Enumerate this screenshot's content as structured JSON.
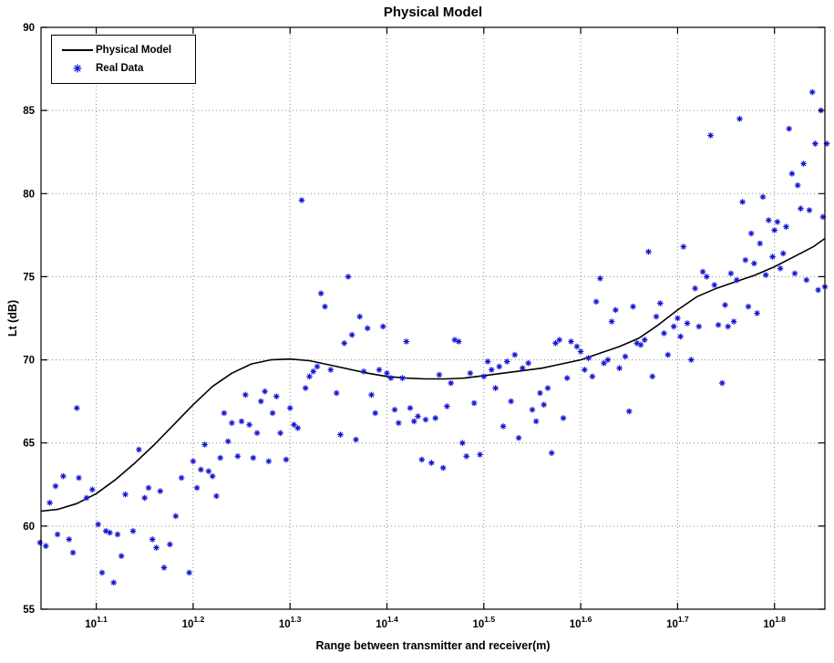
{
  "figure": {
    "background": "#ffffff"
  },
  "legend": {
    "items": [
      {
        "label": "Physical Model",
        "marker": "line"
      },
      {
        "label": "Real Data",
        "marker": "asterisk"
      }
    ]
  },
  "chart_data": {
    "type": "scatter",
    "title": "Physical Model",
    "xlabel": "Range between transmitter and receiver(m)",
    "ylabel": "Lt (dB)",
    "x_scale": "log10",
    "x_tick_base": "10",
    "x_tick_exponents": [
      "1.1",
      "1.2",
      "1.3",
      "1.4",
      "1.5",
      "1.6",
      "1.7",
      "1.8"
    ],
    "xlim_log": [
      1.043,
      1.852
    ],
    "ylim": [
      55,
      90
    ],
    "y_ticks": [
      55,
      60,
      65,
      70,
      75,
      80,
      85,
      90
    ],
    "grid": "dotted",
    "legend_position": "top-left",
    "colors": {
      "model": "#000000",
      "data": "#1414d6",
      "grid": "#8a8a8a"
    },
    "series": [
      {
        "name": "Physical Model",
        "type": "line",
        "points_logx_y": [
          [
            1.043,
            60.9
          ],
          [
            1.06,
            61.0
          ],
          [
            1.08,
            61.35
          ],
          [
            1.1,
            61.95
          ],
          [
            1.12,
            62.8
          ],
          [
            1.14,
            63.8
          ],
          [
            1.16,
            64.9
          ],
          [
            1.18,
            66.1
          ],
          [
            1.2,
            67.3
          ],
          [
            1.22,
            68.4
          ],
          [
            1.24,
            69.2
          ],
          [
            1.26,
            69.75
          ],
          [
            1.28,
            70.0
          ],
          [
            1.3,
            70.05
          ],
          [
            1.32,
            69.95
          ],
          [
            1.34,
            69.7
          ],
          [
            1.36,
            69.45
          ],
          [
            1.38,
            69.2
          ],
          [
            1.4,
            69.0
          ],
          [
            1.42,
            68.9
          ],
          [
            1.44,
            68.85
          ],
          [
            1.46,
            68.85
          ],
          [
            1.48,
            68.9
          ],
          [
            1.5,
            69.05
          ],
          [
            1.52,
            69.2
          ],
          [
            1.54,
            69.35
          ],
          [
            1.56,
            69.5
          ],
          [
            1.58,
            69.75
          ],
          [
            1.6,
            70.0
          ],
          [
            1.62,
            70.4
          ],
          [
            1.64,
            70.8
          ],
          [
            1.66,
            71.3
          ],
          [
            1.68,
            72.1
          ],
          [
            1.7,
            73.0
          ],
          [
            1.72,
            73.8
          ],
          [
            1.74,
            74.3
          ],
          [
            1.76,
            74.7
          ],
          [
            1.78,
            75.1
          ],
          [
            1.8,
            75.6
          ],
          [
            1.82,
            76.2
          ],
          [
            1.84,
            76.8
          ],
          [
            1.852,
            77.3
          ]
        ]
      },
      {
        "name": "Real Data",
        "type": "scatter",
        "points_logx_y": [
          [
            1.042,
            59.0
          ],
          [
            1.048,
            58.8
          ],
          [
            1.052,
            61.4
          ],
          [
            1.058,
            62.4
          ],
          [
            1.06,
            59.5
          ],
          [
            1.066,
            63.0
          ],
          [
            1.072,
            59.2
          ],
          [
            1.076,
            58.4
          ],
          [
            1.08,
            67.1
          ],
          [
            1.082,
            62.9
          ],
          [
            1.09,
            61.7
          ],
          [
            1.096,
            62.2
          ],
          [
            1.102,
            60.1
          ],
          [
            1.106,
            57.2
          ],
          [
            1.11,
            59.7
          ],
          [
            1.114,
            59.6
          ],
          [
            1.118,
            56.6
          ],
          [
            1.122,
            59.5
          ],
          [
            1.126,
            58.2
          ],
          [
            1.13,
            61.9
          ],
          [
            1.138,
            59.7
          ],
          [
            1.144,
            64.6
          ],
          [
            1.15,
            61.7
          ],
          [
            1.154,
            62.3
          ],
          [
            1.158,
            59.2
          ],
          [
            1.162,
            58.7
          ],
          [
            1.166,
            62.1
          ],
          [
            1.17,
            57.5
          ],
          [
            1.176,
            58.9
          ],
          [
            1.182,
            60.6
          ],
          [
            1.188,
            62.9
          ],
          [
            1.196,
            57.2
          ],
          [
            1.2,
            63.9
          ],
          [
            1.204,
            62.3
          ],
          [
            1.208,
            63.4
          ],
          [
            1.212,
            64.9
          ],
          [
            1.216,
            63.3
          ],
          [
            1.22,
            63.0
          ],
          [
            1.224,
            61.8
          ],
          [
            1.228,
            64.1
          ],
          [
            1.232,
            66.8
          ],
          [
            1.236,
            65.1
          ],
          [
            1.24,
            66.2
          ],
          [
            1.246,
            64.2
          ],
          [
            1.25,
            66.3
          ],
          [
            1.254,
            67.9
          ],
          [
            1.258,
            66.1
          ],
          [
            1.262,
            64.1
          ],
          [
            1.266,
            65.6
          ],
          [
            1.27,
            67.5
          ],
          [
            1.274,
            68.1
          ],
          [
            1.278,
            63.9
          ],
          [
            1.282,
            66.8
          ],
          [
            1.286,
            67.8
          ],
          [
            1.29,
            65.6
          ],
          [
            1.296,
            64.0
          ],
          [
            1.3,
            67.1
          ],
          [
            1.304,
            66.1
          ],
          [
            1.308,
            65.9
          ],
          [
            1.312,
            79.6
          ],
          [
            1.316,
            68.3
          ],
          [
            1.32,
            69.0
          ],
          [
            1.324,
            69.3
          ],
          [
            1.328,
            69.6
          ],
          [
            1.332,
            74.0
          ],
          [
            1.336,
            73.2
          ],
          [
            1.342,
            69.4
          ],
          [
            1.348,
            68.0
          ],
          [
            1.352,
            65.5
          ],
          [
            1.356,
            71.0
          ],
          [
            1.36,
            75.0
          ],
          [
            1.364,
            71.5
          ],
          [
            1.368,
            65.2
          ],
          [
            1.372,
            72.6
          ],
          [
            1.376,
            69.3
          ],
          [
            1.38,
            71.9
          ],
          [
            1.384,
            67.9
          ],
          [
            1.388,
            66.8
          ],
          [
            1.392,
            69.4
          ],
          [
            1.396,
            72.0
          ],
          [
            1.4,
            69.2
          ],
          [
            1.404,
            68.9
          ],
          [
            1.408,
            67.0
          ],
          [
            1.412,
            66.2
          ],
          [
            1.416,
            68.9
          ],
          [
            1.42,
            71.1
          ],
          [
            1.424,
            67.1
          ],
          [
            1.428,
            66.3
          ],
          [
            1.432,
            66.6
          ],
          [
            1.436,
            64.0
          ],
          [
            1.44,
            66.4
          ],
          [
            1.446,
            63.8
          ],
          [
            1.45,
            66.5
          ],
          [
            1.454,
            69.1
          ],
          [
            1.458,
            63.5
          ],
          [
            1.462,
            67.2
          ],
          [
            1.466,
            68.6
          ],
          [
            1.47,
            71.2
          ],
          [
            1.474,
            71.1
          ],
          [
            1.478,
            65.0
          ],
          [
            1.482,
            64.2
          ],
          [
            1.486,
            69.2
          ],
          [
            1.49,
            67.4
          ],
          [
            1.496,
            64.3
          ],
          [
            1.5,
            69.0
          ],
          [
            1.504,
            69.9
          ],
          [
            1.508,
            69.4
          ],
          [
            1.512,
            68.3
          ],
          [
            1.516,
            69.6
          ],
          [
            1.52,
            66.0
          ],
          [
            1.524,
            69.9
          ],
          [
            1.528,
            67.5
          ],
          [
            1.532,
            70.3
          ],
          [
            1.536,
            65.3
          ],
          [
            1.54,
            69.5
          ],
          [
            1.546,
            69.8
          ],
          [
            1.55,
            67.0
          ],
          [
            1.554,
            66.3
          ],
          [
            1.558,
            68.0
          ],
          [
            1.562,
            67.3
          ],
          [
            1.566,
            68.3
          ],
          [
            1.57,
            64.4
          ],
          [
            1.574,
            71.0
          ],
          [
            1.578,
            71.2
          ],
          [
            1.582,
            66.5
          ],
          [
            1.586,
            68.9
          ],
          [
            1.59,
            71.1
          ],
          [
            1.596,
            70.8
          ],
          [
            1.6,
            70.5
          ],
          [
            1.604,
            69.4
          ],
          [
            1.608,
            70.1
          ],
          [
            1.612,
            69.0
          ],
          [
            1.616,
            73.5
          ],
          [
            1.62,
            74.9
          ],
          [
            1.624,
            69.8
          ],
          [
            1.628,
            70.0
          ],
          [
            1.632,
            72.3
          ],
          [
            1.636,
            73.0
          ],
          [
            1.64,
            69.5
          ],
          [
            1.646,
            70.2
          ],
          [
            1.65,
            66.9
          ],
          [
            1.654,
            73.2
          ],
          [
            1.658,
            71.0
          ],
          [
            1.662,
            70.9
          ],
          [
            1.666,
            71.2
          ],
          [
            1.67,
            76.5
          ],
          [
            1.674,
            69.0
          ],
          [
            1.678,
            72.6
          ],
          [
            1.682,
            73.4
          ],
          [
            1.686,
            71.6
          ],
          [
            1.69,
            70.3
          ],
          [
            1.696,
            72.0
          ],
          [
            1.7,
            72.5
          ],
          [
            1.703,
            71.4
          ],
          [
            1.706,
            76.8
          ],
          [
            1.71,
            72.2
          ],
          [
            1.714,
            70.0
          ],
          [
            1.718,
            74.3
          ],
          [
            1.722,
            72.0
          ],
          [
            1.726,
            75.3
          ],
          [
            1.73,
            75.0
          ],
          [
            1.734,
            83.5
          ],
          [
            1.738,
            74.5
          ],
          [
            1.742,
            72.1
          ],
          [
            1.746,
            68.6
          ],
          [
            1.749,
            73.3
          ],
          [
            1.752,
            72.0
          ],
          [
            1.755,
            75.2
          ],
          [
            1.758,
            72.3
          ],
          [
            1.761,
            74.8
          ],
          [
            1.764,
            84.5
          ],
          [
            1.767,
            79.5
          ],
          [
            1.77,
            76.0
          ],
          [
            1.773,
            73.2
          ],
          [
            1.776,
            77.6
          ],
          [
            1.779,
            75.8
          ],
          [
            1.782,
            72.8
          ],
          [
            1.785,
            77.0
          ],
          [
            1.788,
            79.8
          ],
          [
            1.791,
            75.1
          ],
          [
            1.794,
            78.4
          ],
          [
            1.798,
            76.2
          ],
          [
            1.8,
            77.8
          ],
          [
            1.803,
            78.3
          ],
          [
            1.806,
            75.5
          ],
          [
            1.809,
            76.4
          ],
          [
            1.812,
            78.0
          ],
          [
            1.815,
            83.9
          ],
          [
            1.818,
            81.2
          ],
          [
            1.821,
            75.2
          ],
          [
            1.824,
            80.5
          ],
          [
            1.827,
            79.1
          ],
          [
            1.83,
            81.8
          ],
          [
            1.833,
            74.8
          ],
          [
            1.836,
            79.0
          ],
          [
            1.839,
            86.1
          ],
          [
            1.842,
            83.0
          ],
          [
            1.845,
            74.2
          ],
          [
            1.848,
            85.0
          ],
          [
            1.85,
            78.6
          ],
          [
            1.852,
            74.4
          ],
          [
            1.854,
            83.0
          ]
        ]
      }
    ]
  }
}
